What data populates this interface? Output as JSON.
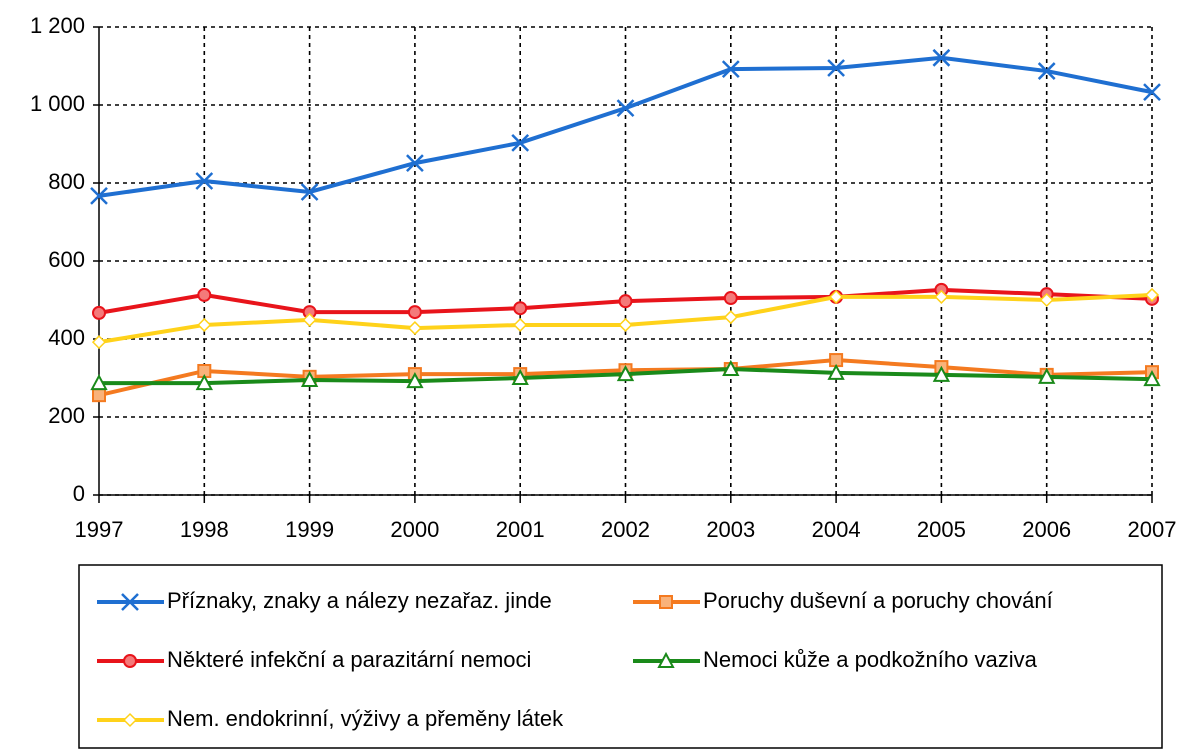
{
  "chart_data": {
    "type": "line",
    "categories": [
      "1997",
      "1998",
      "1999",
      "2000",
      "2001",
      "2002",
      "2003",
      "2004",
      "2005",
      "2006",
      "2007"
    ],
    "series": [
      {
        "name": "Příznaky, znaky a nálezy nezařaz. jinde",
        "color": "#1f6fd1",
        "marker": "x",
        "values": [
          767,
          805,
          777,
          851,
          903,
          992,
          1092,
          1095,
          1121,
          1087,
          1033
        ]
      },
      {
        "name": "Poruchy duševní a poruchy chování",
        "color": "#f47a20",
        "marker": "square",
        "values": [
          256,
          318,
          303,
          310,
          310,
          320,
          323,
          346,
          328,
          308,
          315
        ]
      },
      {
        "name": "Některé infekční a parazitární nemoci",
        "color": "#e8141b",
        "marker": "circle",
        "values": [
          467,
          513,
          469,
          469,
          479,
          497,
          505,
          508,
          526,
          515,
          503
        ]
      },
      {
        "name": "Nemoci kůže a podkožního vaziva",
        "color": "#1a8a1a",
        "marker": "triangle",
        "values": [
          287,
          287,
          295,
          292,
          300,
          310,
          323,
          313,
          308,
          303,
          297
        ]
      },
      {
        "name": "Nem. endokrinní, výživy a přeměny látek",
        "color": "#ffd21a",
        "marker": "diamond",
        "values": [
          392,
          436,
          449,
          428,
          436,
          436,
          456,
          508,
          508,
          500,
          513
        ]
      }
    ],
    "ylim": [
      0,
      1200
    ],
    "yticks": [
      0,
      200,
      400,
      600,
      800,
      {
        "value": 1000,
        "label": "1 000"
      },
      {
        "value": 1200,
        "label": "1 200"
      }
    ],
    "grid": true
  }
}
